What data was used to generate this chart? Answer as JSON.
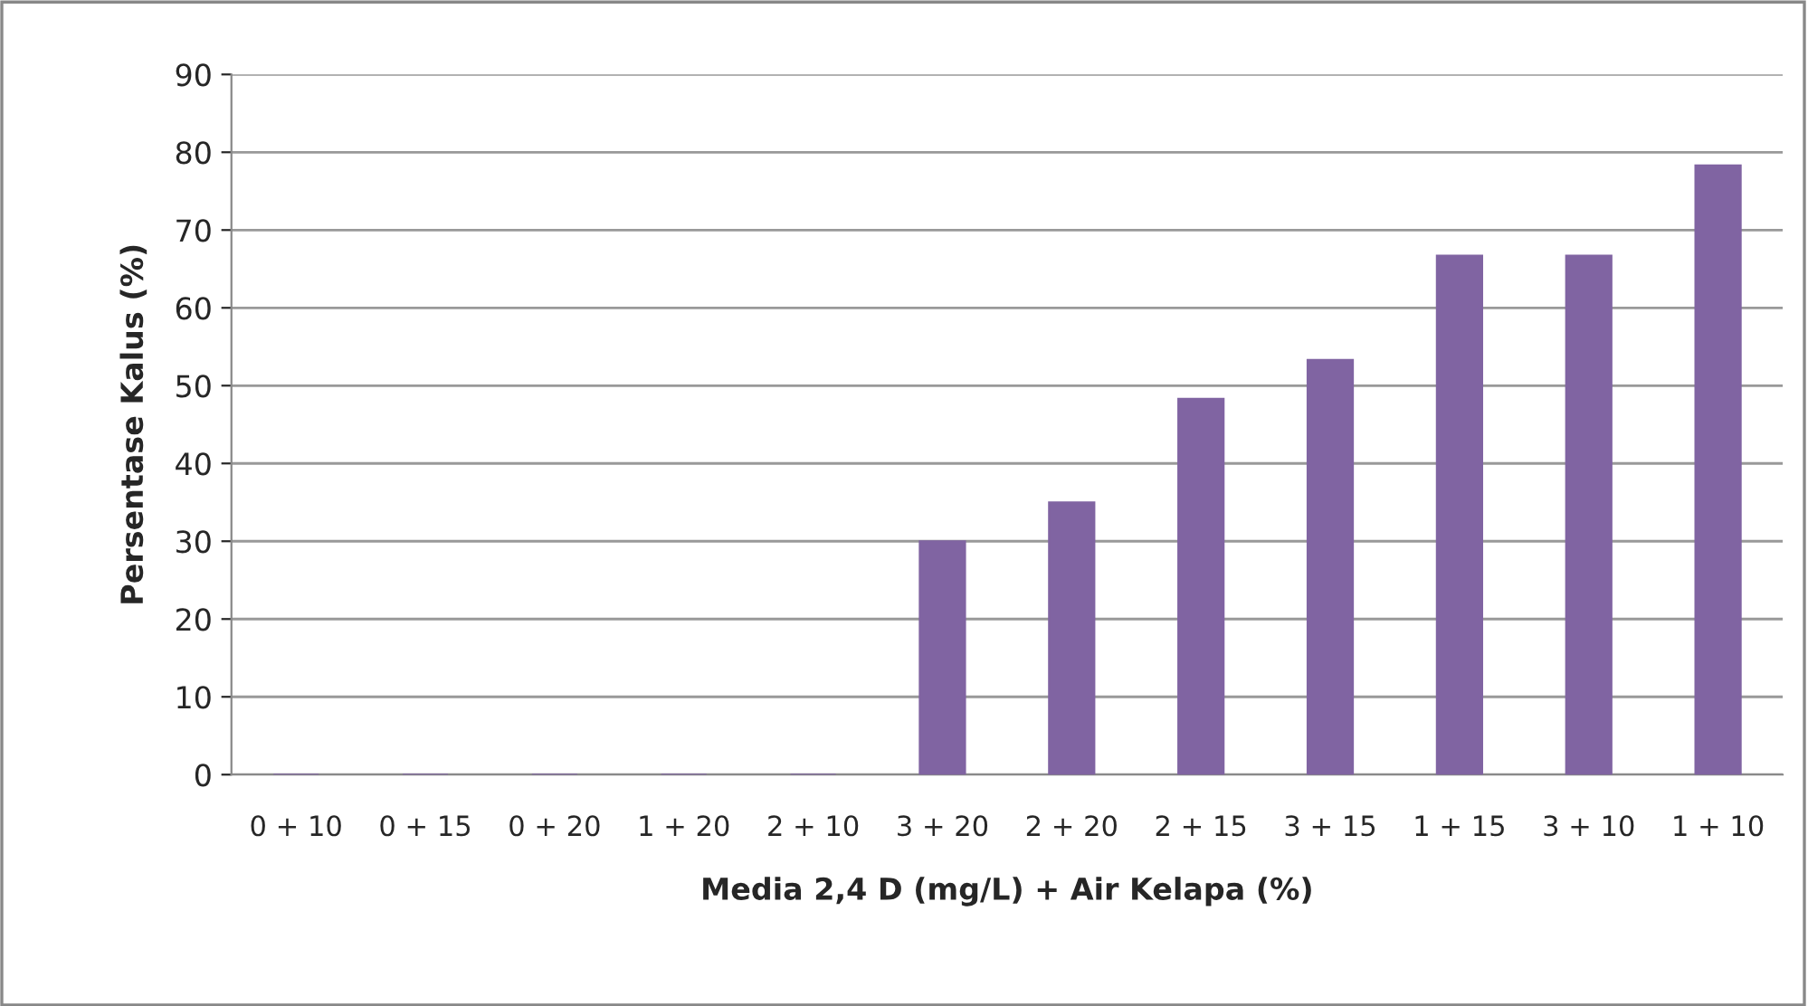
{
  "chart_data": {
    "type": "bar",
    "xlabel": "Media 2,4 D (mg/L) + Air Kelapa (%)",
    "ylabel": "Persentase Kalus (%)",
    "categories": [
      "0 + 10",
      "0 + 15",
      "0 + 20",
      "1 + 20",
      "2 + 10",
      "3 + 20",
      "2 + 20",
      "2 + 15",
      "3 + 15",
      "1 + 15",
      "3 + 10",
      "1 + 10"
    ],
    "values": [
      0,
      0,
      0,
      0,
      0,
      30,
      35,
      48.3,
      53.3,
      66.7,
      66.7,
      78.3
    ],
    "color": "#8064a2",
    "ylim": [
      0,
      90
    ],
    "yticks": [
      0,
      10,
      20,
      30,
      40,
      50,
      60,
      70,
      80,
      90
    ],
    "grid": "y",
    "legend": false
  }
}
